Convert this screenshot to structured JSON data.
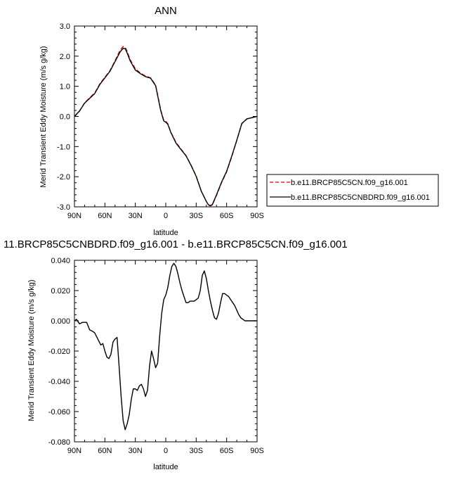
{
  "chart_data": [
    {
      "type": "line",
      "title": "ANN",
      "xlabel": "latitude",
      "ylabel": "Merid Transient Eddy Moisture (m/s g/kg)",
      "xlim": [
        90,
        -90
      ],
      "ylim": [
        -3.0,
        3.0
      ],
      "x_ticks": [
        90,
        60,
        30,
        0,
        -30,
        -60,
        -90
      ],
      "x_tick_labels": [
        "90N",
        "60N",
        "30N",
        "0",
        "30S",
        "60S",
        "90S"
      ],
      "y_ticks": [
        -3.0,
        -2.0,
        -1.0,
        0.0,
        1.0,
        2.0,
        3.0
      ],
      "y_tick_labels": [
        "-3.0",
        "-2.0",
        "-1.0",
        "0.0",
        "1.0",
        "2.0",
        "3.0"
      ],
      "grid": false,
      "legend_position": "right",
      "series": [
        {
          "name": "b.e11.BRCP85C5CN.f09_g16.001",
          "color": "#e00000",
          "dash": "dashed",
          "x": [
            90,
            85,
            80,
            75,
            70,
            65,
            60,
            55,
            50,
            45,
            42,
            40,
            38,
            35,
            30,
            25,
            20,
            15,
            10,
            5,
            2,
            0,
            -2,
            -5,
            -10,
            -15,
            -20,
            -25,
            -30,
            -35,
            -40,
            -42,
            -44,
            -46,
            -50,
            -55,
            -60,
            -65,
            -70,
            -75,
            -80,
            -85,
            -90
          ],
          "y": [
            0.0,
            0.18,
            0.45,
            0.62,
            0.78,
            1.08,
            1.3,
            1.52,
            1.85,
            2.2,
            2.32,
            2.3,
            2.15,
            1.88,
            1.58,
            1.44,
            1.34,
            1.28,
            1.04,
            0.22,
            -0.13,
            -0.16,
            -0.24,
            -0.52,
            -0.86,
            -1.08,
            -1.3,
            -1.62,
            -1.98,
            -2.48,
            -2.82,
            -2.94,
            -2.97,
            -2.93,
            -2.62,
            -2.2,
            -1.84,
            -1.34,
            -0.8,
            -0.24,
            -0.08,
            -0.04,
            0.0
          ]
        },
        {
          "name": "b.e11.BRCP85C5CNBDRD.f09_g16.001",
          "color": "#000000",
          "dash": "solid",
          "x": [
            90,
            85,
            80,
            75,
            70,
            65,
            60,
            55,
            50,
            45,
            42,
            40,
            38,
            35,
            30,
            25,
            20,
            15,
            10,
            5,
            2,
            0,
            -2,
            -5,
            -10,
            -15,
            -20,
            -25,
            -30,
            -35,
            -40,
            -42,
            -44,
            -46,
            -50,
            -55,
            -60,
            -65,
            -70,
            -75,
            -80,
            -85,
            -90
          ],
          "y": [
            0.0,
            0.18,
            0.44,
            0.6,
            0.76,
            1.06,
            1.28,
            1.5,
            1.82,
            2.14,
            2.26,
            2.25,
            2.1,
            1.84,
            1.54,
            1.42,
            1.32,
            1.27,
            1.02,
            0.2,
            -0.15,
            -0.19,
            -0.26,
            -0.53,
            -0.88,
            -1.1,
            -1.31,
            -1.63,
            -1.99,
            -2.48,
            -2.82,
            -2.93,
            -2.96,
            -2.92,
            -2.6,
            -2.18,
            -1.82,
            -1.32,
            -0.79,
            -0.23,
            -0.08,
            -0.04,
            0.0
          ]
        }
      ]
    },
    {
      "type": "line",
      "title": "11.BRCP85C5CNBDRD.f09_g16.001 - b.e11.BRCP85C5CN.f09_g16.001",
      "xlabel": "latitude",
      "ylabel": "Merid Transient Eddy Moisture (m/s g/kg)",
      "xlim": [
        90,
        -90
      ],
      "ylim": [
        -0.08,
        0.04
      ],
      "x_ticks": [
        90,
        60,
        30,
        0,
        -30,
        -60,
        -90
      ],
      "x_tick_labels": [
        "90N",
        "60N",
        "30N",
        "0",
        "30S",
        "60S",
        "90S"
      ],
      "y_ticks": [
        -0.08,
        -0.06,
        -0.04,
        -0.02,
        0.0,
        0.02,
        0.04
      ],
      "y_tick_labels": [
        "-0.080",
        "-0.060",
        "-0.040",
        "-0.020",
        "0.000",
        "0.020",
        "0.040"
      ],
      "grid": false,
      "series": [
        {
          "color": "#000000",
          "dash": "solid",
          "x": [
            90,
            88,
            85,
            82,
            78,
            75,
            72,
            70,
            67,
            64,
            62,
            60,
            58,
            56,
            54,
            52,
            50,
            48,
            46,
            44,
            42,
            40,
            38,
            36,
            34,
            32,
            30,
            28,
            26,
            24,
            22,
            20,
            18,
            16,
            14,
            12,
            10,
            8,
            6,
            4,
            2,
            0,
            -2,
            -4,
            -6,
            -8,
            -10,
            -12,
            -14,
            -16,
            -18,
            -20,
            -22,
            -24,
            -26,
            -28,
            -30,
            -32,
            -34,
            -36,
            -38,
            -40,
            -42,
            -44,
            -46,
            -48,
            -50,
            -52,
            -54,
            -56,
            -58,
            -60,
            -62,
            -64,
            -66,
            -68,
            -70,
            -72,
            -74,
            -76,
            -78,
            -80,
            -82,
            -84,
            -86,
            -88,
            -90
          ],
          "y": [
            0.0,
            0.001,
            -0.002,
            -0.001,
            -0.001,
            -0.006,
            -0.007,
            -0.008,
            -0.012,
            -0.016,
            -0.015,
            -0.02,
            -0.024,
            -0.025,
            -0.022,
            -0.014,
            -0.012,
            -0.011,
            -0.03,
            -0.05,
            -0.066,
            -0.072,
            -0.068,
            -0.062,
            -0.052,
            -0.045,
            -0.045,
            -0.046,
            -0.043,
            -0.042,
            -0.045,
            -0.05,
            -0.046,
            -0.03,
            -0.02,
            -0.025,
            -0.031,
            -0.028,
            -0.01,
            0.005,
            0.014,
            0.017,
            0.022,
            0.03,
            0.036,
            0.038,
            0.036,
            0.031,
            0.025,
            0.02,
            0.016,
            0.012,
            0.012,
            0.013,
            0.013,
            0.013,
            0.014,
            0.015,
            0.02,
            0.03,
            0.033,
            0.028,
            0.02,
            0.013,
            0.007,
            0.002,
            0.001,
            0.005,
            0.012,
            0.018,
            0.018,
            0.017,
            0.016,
            0.014,
            0.012,
            0.01,
            0.007,
            0.004,
            0.002,
            0.001,
            0.0,
            0.0,
            0.0,
            0.0,
            0.0,
            0.0,
            0.0
          ]
        }
      ]
    }
  ]
}
